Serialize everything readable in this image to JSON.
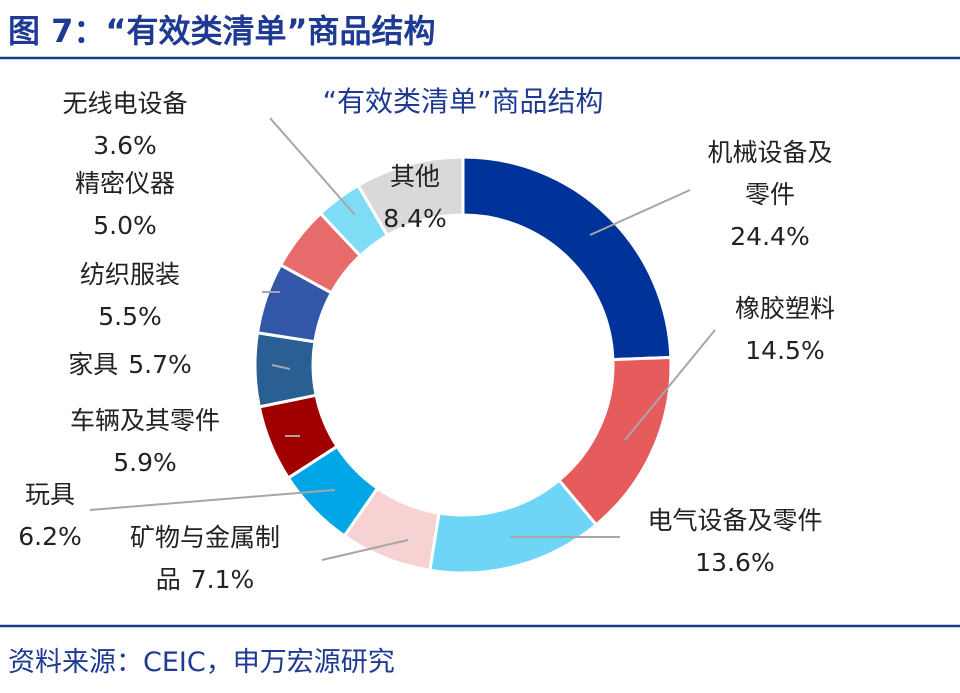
{
  "header": {
    "title": "图 7：“有效类清单”商品结构"
  },
  "chart_data": {
    "type": "donut",
    "title": "“有效类清单”商品结构",
    "categories": [
      "机械设备及零件",
      "橡胶塑料",
      "电气设备及零件",
      "矿物与金属制品",
      "玩具",
      "车辆及其零件",
      "家具",
      "纺织服装",
      "精密仪器",
      "无线电设备",
      "其他"
    ],
    "values": [
      24.4,
      14.5,
      13.6,
      7.1,
      6.2,
      5.9,
      5.7,
      5.5,
      5.0,
      3.6,
      8.4
    ],
    "value_labels": [
      "24.4%",
      "14.5%",
      "13.6%",
      "7.1%",
      "6.2%",
      "5.9%",
      "5.7%",
      "5.5%",
      "5.0%",
      "3.6%",
      "8.4%"
    ],
    "colors": [
      "#003399",
      "#e65c5c",
      "#6fd5f7",
      "#f7d2d2",
      "#00a6e6",
      "#a00000",
      "#2a5f94",
      "#3256a8",
      "#e86b6b",
      "#7fdcf5",
      "#d9d9d9"
    ]
  },
  "footer": {
    "source": "资料来源：CEIC，申万宏源研究"
  }
}
